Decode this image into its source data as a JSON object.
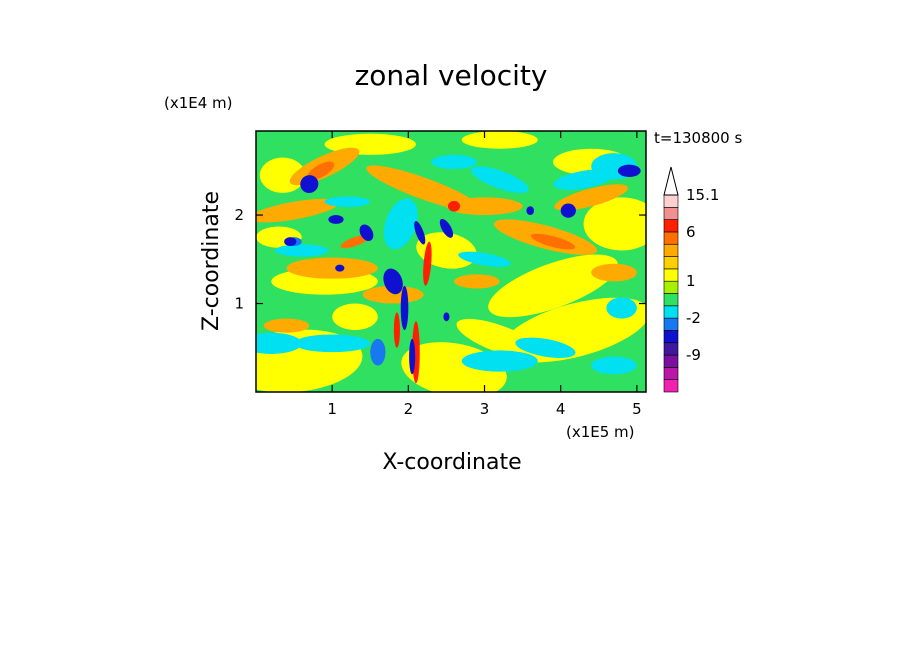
{
  "chart_data": {
    "type": "heatmap",
    "title": "zonal velocity",
    "xlabel": "X-coordinate",
    "ylabel": "Z-coordinate",
    "x_unit": "(x1E5 m)",
    "y_unit": "(x1E4 m)",
    "time_label": "t=130800 s",
    "xlim": [
      0,
      5.12
    ],
    "ylim": [
      0,
      2.95
    ],
    "x_ticks": [
      {
        "value": 1,
        "label": "1"
      },
      {
        "value": 2,
        "label": "2"
      },
      {
        "value": 3,
        "label": "3"
      },
      {
        "value": 4,
        "label": "4"
      },
      {
        "value": 5,
        "label": "5"
      }
    ],
    "y_ticks": [
      {
        "value": 1,
        "label": "1"
      },
      {
        "value": 2,
        "label": "2"
      }
    ],
    "colorbar": {
      "levels": [
        {
          "color": "#f020b0",
          "label": ""
        },
        {
          "color": "#b818a8",
          "label": ""
        },
        {
          "color": "#7a10a0",
          "label": "-9"
        },
        {
          "color": "#4018a0",
          "label": ""
        },
        {
          "color": "#1010d0",
          "label": ""
        },
        {
          "color": "#1878f0",
          "label": "-2"
        },
        {
          "color": "#00e0f0",
          "label": ""
        },
        {
          "color": "#30e060",
          "label": ""
        },
        {
          "color": "#a8f000",
          "label": "1"
        },
        {
          "color": "#ffff00",
          "label": ""
        },
        {
          "color": "#ffd000",
          "label": ""
        },
        {
          "color": "#ffaa00",
          "label": ""
        },
        {
          "color": "#ff7000",
          "label": "6"
        },
        {
          "color": "#ff2000",
          "label": ""
        },
        {
          "color": "#f09090",
          "label": ""
        },
        {
          "color": "#ffd0d0",
          "label": "15.1"
        }
      ]
    }
  }
}
